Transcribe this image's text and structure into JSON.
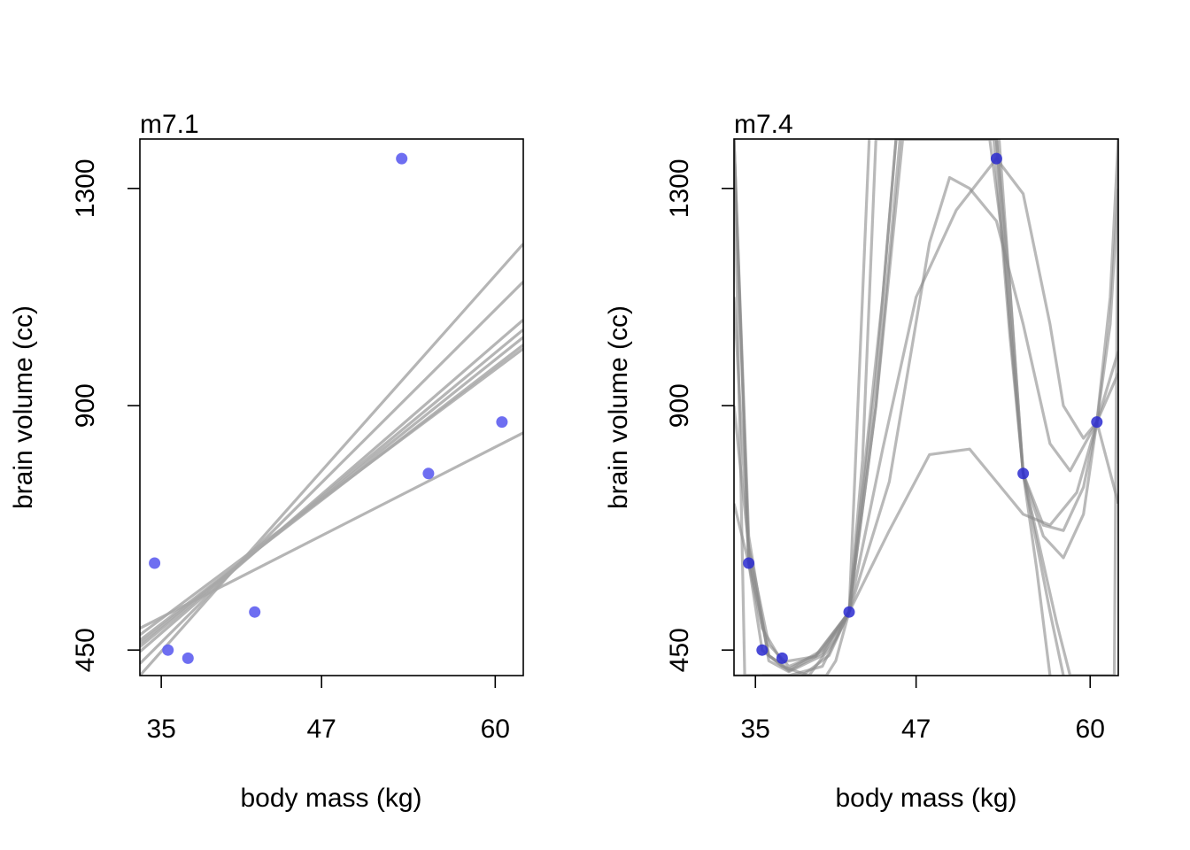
{
  "chart_data": [
    {
      "type": "scatter",
      "title": "m7.1",
      "xlabel": "body mass (kg)",
      "ylabel": "brain volume (cc)",
      "xlim": [
        33.4,
        62.1
      ],
      "ylim": [
        403,
        1391
      ],
      "xticks": [
        35,
        47,
        60
      ],
      "yticks": [
        450,
        900,
        1300
      ],
      "points": {
        "color": "#6666f0",
        "x": [
          34.5,
          35.5,
          37.0,
          42.0,
          53.0,
          55.0,
          60.5
        ],
        "y": [
          610,
          450,
          435,
          520,
          1355,
          775,
          870
        ]
      },
      "fit_lines": {
        "color": "#a8a8a8",
        "models": [
          [
            [
              33.4,
              403
            ],
            [
              62.1,
              1198
            ]
          ],
          [
            [
              33.4,
              425
            ],
            [
              62.1,
              1128
            ]
          ],
          [
            [
              33.4,
              447
            ],
            [
              62.1,
              1058
            ]
          ],
          [
            [
              33.4,
              456
            ],
            [
              62.1,
              1040
            ]
          ],
          [
            [
              33.4,
              462
            ],
            [
              62.1,
              1026
            ]
          ],
          [
            [
              33.4,
              468
            ],
            [
              62.1,
              1012
            ]
          ],
          [
            [
              33.4,
              478
            ],
            [
              62.1,
              1005
            ]
          ],
          [
            [
              33.4,
              490
            ],
            [
              62.1,
              850
            ]
          ]
        ]
      }
    },
    {
      "type": "scatter",
      "title": "m7.4",
      "xlabel": "body mass (kg)",
      "ylabel": "brain volume (cc)",
      "xlim": [
        33.4,
        62.1
      ],
      "ylim": [
        403,
        1391
      ],
      "xticks": [
        35,
        47,
        60
      ],
      "yticks": [
        450,
        900,
        1300
      ],
      "points": {
        "color": "#2a2ad0",
        "x": [
          34.5,
          35.5,
          37.0,
          42.0,
          53.0,
          55.0,
          60.5
        ],
        "y": [
          610,
          450,
          435,
          520,
          1355,
          775,
          870
        ]
      },
      "fit_curves": {
        "color": "#8a8a8a",
        "models": [
          [
            [
              33.4,
              720
            ],
            [
              34.5,
              610
            ],
            [
              35.5,
              490
            ],
            [
              37.0,
              428
            ],
            [
              39.5,
              438
            ],
            [
              42.0,
              520
            ],
            [
              45.0,
              670
            ],
            [
              48.0,
              810
            ],
            [
              51.0,
              820
            ],
            [
              53.0,
              760
            ],
            [
              55.0,
              700
            ],
            [
              57.0,
              680
            ],
            [
              59.0,
              740
            ],
            [
              60.5,
              870
            ],
            [
              62.1,
              720
            ]
          ],
          [
            [
              33.4,
              900
            ],
            [
              34.5,
              640
            ],
            [
              36.0,
              460
            ],
            [
              37.5,
              420
            ],
            [
              39.5,
              440
            ],
            [
              42.0,
              520
            ],
            [
              45.0,
              760
            ],
            [
              48.0,
              1200
            ],
            [
              49.5,
              1320
            ],
            [
              51.0,
              1300
            ],
            [
              53.0,
              1240
            ],
            [
              55.0,
              1050
            ],
            [
              57.0,
              830
            ],
            [
              58.5,
              780
            ],
            [
              60.5,
              870
            ],
            [
              62.1,
              1000
            ]
          ],
          [
            [
              33.4,
              1100
            ],
            [
              34.5,
              620
            ],
            [
              36.0,
              440
            ],
            [
              37.5,
              415
            ],
            [
              40.0,
              450
            ],
            [
              42.0,
              520
            ],
            [
              44.5,
              820
            ],
            [
              47.0,
              1100
            ],
            [
              50.0,
              1260
            ],
            [
              53.0,
              1355
            ],
            [
              55.0,
              1290
            ],
            [
              57.0,
              1050
            ],
            [
              58.0,
              900
            ],
            [
              59.5,
              840
            ],
            [
              60.5,
              870
            ],
            [
              62.1,
              960
            ]
          ],
          [
            [
              33.4,
              1391
            ],
            [
              34.5,
              660
            ],
            [
              36.0,
              430
            ],
            [
              37.5,
              410
            ],
            [
              40.0,
              440
            ],
            [
              42.0,
              520
            ],
            [
              44.0,
              950
            ],
            [
              45.5,
              1391
            ],
            [
              53.0,
              1391
            ],
            [
              54.0,
              1120
            ],
            [
              55.0,
              775
            ],
            [
              56.5,
              660
            ],
            [
              58.0,
              620
            ],
            [
              59.5,
              700
            ],
            [
              60.5,
              870
            ],
            [
              61.5,
              1050
            ],
            [
              62.1,
              1300
            ]
          ],
          [
            [
              33.4,
              1391
            ],
            [
              34.5,
              630
            ],
            [
              36.0,
              440
            ],
            [
              37.5,
              412
            ],
            [
              40.0,
              445
            ],
            [
              42.0,
              520
            ],
            [
              44.0,
              900
            ],
            [
              46.0,
              1391
            ],
            [
              53.0,
              1391
            ],
            [
              54.0,
              1050
            ],
            [
              55.0,
              775
            ],
            [
              56.5,
              680
            ],
            [
              58.0,
              670
            ],
            [
              59.5,
              750
            ],
            [
              60.5,
              870
            ],
            [
              61.5,
              1100
            ],
            [
              62.1,
              1391
            ]
          ],
          [
            [
              33.4,
              1391
            ],
            [
              34.5,
              610
            ],
            [
              35.5,
              450
            ],
            [
              37.0,
              420
            ],
            [
              39.0,
              403
            ],
            [
              41.0,
              470
            ],
            [
              42.0,
              520
            ],
            [
              43.0,
              800
            ],
            [
              44.0,
              1391
            ],
            [
              52.8,
              1391
            ],
            [
              54.0,
              1030
            ],
            [
              55.0,
              775
            ],
            [
              57.0,
              520
            ],
            [
              58.0,
              403
            ]
          ],
          [
            [
              33.4,
              1391
            ],
            [
              34.2,
              403
            ],
            [
              37.0,
              403
            ],
            [
              38.5,
              403
            ],
            [
              40.5,
              440
            ],
            [
              42.0,
              520
            ],
            [
              44.0,
              900
            ],
            [
              45.8,
              1391
            ],
            [
              52.5,
              1391
            ],
            [
              53.5,
              1200
            ],
            [
              55.0,
              775
            ],
            [
              56.0,
              600
            ],
            [
              57.0,
              403
            ]
          ],
          [
            [
              33.4,
              403
            ],
            [
              35.8,
              403
            ],
            [
              37.5,
              403
            ],
            [
              40.0,
              420
            ],
            [
              42.0,
              520
            ],
            [
              44.5,
              1100
            ],
            [
              45.5,
              1391
            ],
            [
              53.2,
              1391
            ],
            [
              55.0,
              775
            ],
            [
              57.5,
              500
            ],
            [
              58.5,
              403
            ],
            [
              61.8,
              403
            ],
            [
              62.1,
              1391
            ]
          ],
          [
            [
              35.5,
              403
            ],
            [
              40.3,
              403
            ],
            [
              41.0,
              430
            ],
            [
              42.0,
              520
            ],
            [
              43.5,
              1391
            ]
          ]
        ]
      }
    }
  ]
}
